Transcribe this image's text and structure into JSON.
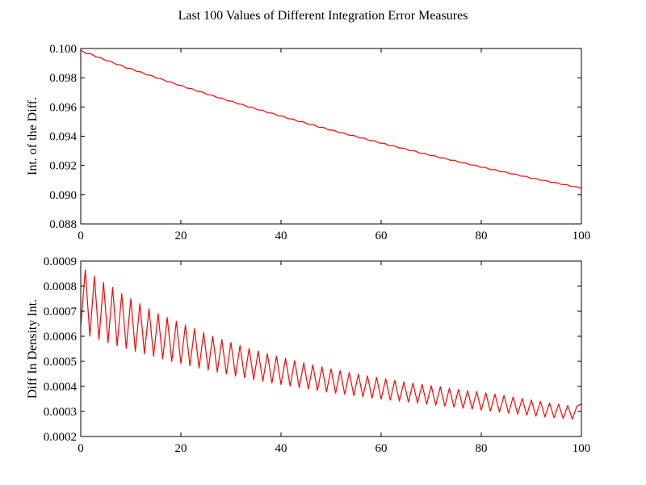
{
  "title": "Last 100 Values of Different Integration Error Measures",
  "chart_data": [
    {
      "type": "line",
      "ylabel": "Int. of the Diff.",
      "xlim": [
        0,
        100
      ],
      "ylim": [
        0.088,
        0.1
      ],
      "xticks": [
        0,
        20,
        40,
        60,
        80,
        100
      ],
      "xtick_labels": [
        "0",
        "20",
        "40",
        "60",
        "80",
        "100"
      ],
      "yticks": [
        0.088,
        0.09,
        0.092,
        0.094,
        0.096,
        0.098,
        0.1
      ],
      "ytick_labels": [
        "0.088",
        "0.090",
        "0.092",
        "0.094",
        "0.096",
        "0.098",
        "0.100"
      ],
      "color": "#ff0000",
      "series": [
        {
          "x_start": 0,
          "x_step": 1,
          "values": [
            0.0999,
            0.09966,
            0.09963,
            0.09943,
            0.09936,
            0.09917,
            0.09911,
            0.09891,
            0.09886,
            0.09866,
            0.09863,
            0.09844,
            0.09839,
            0.0982,
            0.09815,
            0.09797,
            0.09792,
            0.09774,
            0.0977,
            0.09751,
            0.09747,
            0.09729,
            0.09725,
            0.09707,
            0.09703,
            0.09685,
            0.09681,
            0.09663,
            0.0966,
            0.09642,
            0.09639,
            0.09621,
            0.09618,
            0.096,
            0.09597,
            0.0958,
            0.09577,
            0.0956,
            0.09557,
            0.0954,
            0.09537,
            0.0952,
            0.09517,
            0.095,
            0.09498,
            0.09481,
            0.09479,
            0.09462,
            0.0946,
            0.09443,
            0.09441,
            0.09425,
            0.09423,
            0.09407,
            0.09405,
            0.09389,
            0.09387,
            0.09371,
            0.09369,
            0.09353,
            0.09351,
            0.09336,
            0.09334,
            0.09319,
            0.09317,
            0.09302,
            0.093,
            0.09285,
            0.09283,
            0.09268,
            0.09266,
            0.09252,
            0.0925,
            0.09236,
            0.09234,
            0.0922,
            0.09218,
            0.09204,
            0.09202,
            0.09188,
            0.09186,
            0.09172,
            0.09171,
            0.09157,
            0.09156,
            0.09142,
            0.09141,
            0.09127,
            0.09126,
            0.09112,
            0.09111,
            0.09098,
            0.09097,
            0.09084,
            0.09083,
            0.0907,
            0.09069,
            0.09056,
            0.09055,
            0.09042
          ]
        }
      ]
    },
    {
      "type": "line",
      "ylabel": "Diff In Density Int.",
      "xlim": [
        0,
        100
      ],
      "ylim": [
        0.0002,
        0.0009
      ],
      "xticks": [
        0,
        20,
        40,
        60,
        80,
        100
      ],
      "xtick_labels": [
        "0",
        "20",
        "40",
        "60",
        "80",
        "100"
      ],
      "yticks": [
        0.0002,
        0.0003,
        0.0004,
        0.0005,
        0.0006,
        0.0007,
        0.0008,
        0.0009
      ],
      "ytick_labels": [
        "0.0002",
        "0.0003",
        "0.0004",
        "0.0005",
        "0.0006",
        "0.0007",
        "0.0008",
        "0.0009"
      ],
      "color": "#ff0000",
      "series": [
        {
          "x_start": 0,
          "x_step": 1,
          "values": [
            0.00064,
            0.000865,
            0.0006,
            0.00084,
            0.000587,
            0.000815,
            0.000574,
            0.000795,
            0.000562,
            0.00077,
            0.000551,
            0.00075,
            0.00054,
            0.00073,
            0.00053,
            0.00071,
            0.00052,
            0.00069,
            0.00051,
            0.000675,
            0.0005,
            0.00066,
            0.000491,
            0.000645,
            0.000482,
            0.00063,
            0.000473,
            0.000615,
            0.000465,
            0.0006,
            0.000457,
            0.000587,
            0.000449,
            0.000575,
            0.000441,
            0.000563,
            0.000434,
            0.000552,
            0.000427,
            0.000541,
            0.00042,
            0.000531,
            0.000413,
            0.000521,
            0.000407,
            0.000512,
            0.000401,
            0.000503,
            0.000395,
            0.000494,
            0.000389,
            0.000486,
            0.000383,
            0.000478,
            0.000378,
            0.00047,
            0.000373,
            0.000463,
            0.000368,
            0.000456,
            0.000363,
            0.000449,
            0.000358,
            0.000442,
            0.000353,
            0.000436,
            0.000349,
            0.00043,
            0.000345,
            0.000424,
            0.000341,
            0.000418,
            0.000337,
            0.000413,
            0.000333,
            0.000408,
            0.000329,
            0.000403,
            0.000325,
            0.000398,
            0.000321,
            0.000393,
            0.000317,
            0.000388,
            0.000313,
            0.000383,
            0.000309,
            0.000379,
            0.000305,
            0.000374,
            0.000301,
            0.000369,
            0.000297,
            0.000364,
            0.000293,
            0.000358,
            0.000289,
            0.000352,
            0.000285,
            0.000346,
            0.000281,
            0.00034,
            0.000278,
            0.000334,
            0.000275,
            0.000329,
            0.000272,
            0.000324,
            0.000269,
            0.00032,
            0.00033
          ]
        }
      ]
    }
  ]
}
